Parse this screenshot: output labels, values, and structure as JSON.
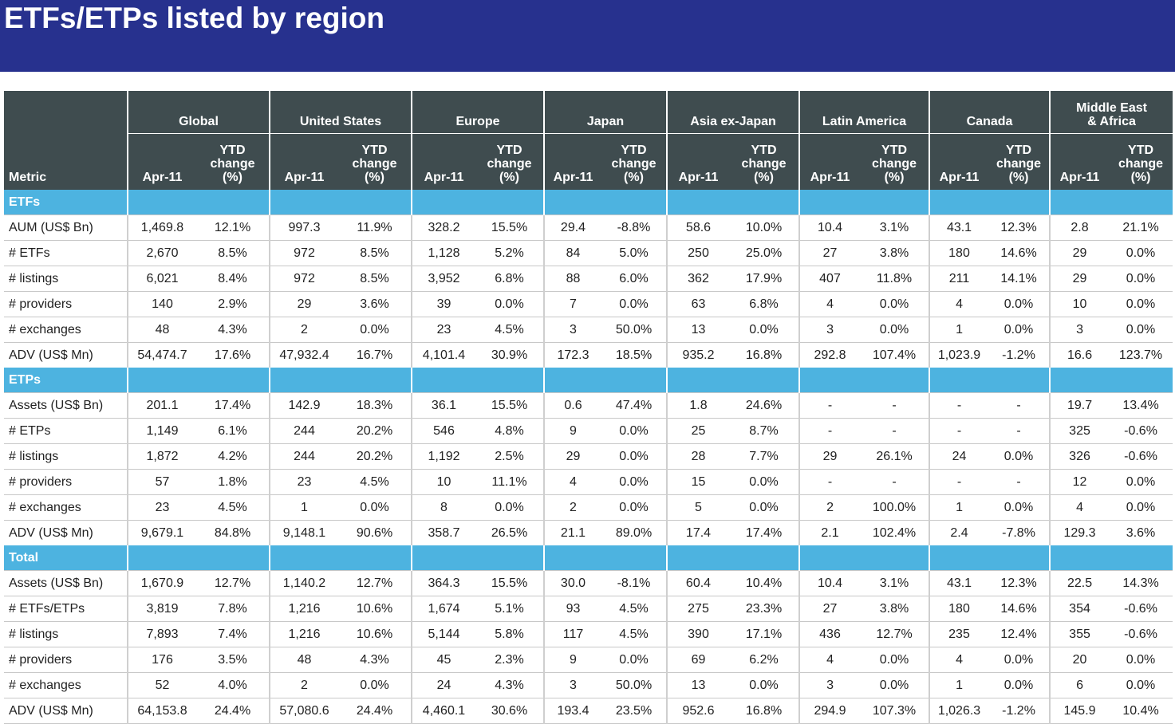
{
  "title": "ETFs/ETPs listed by region",
  "header": {
    "metric_label": "Metric",
    "regions": [
      "Global",
      "United States",
      "Europe",
      "Japan",
      "Asia ex-Japan",
      "Latin America",
      "Canada",
      "Middle East\n& Africa"
    ],
    "col1_label": "Apr-11",
    "col2_label": "YTD\nchange\n(%)"
  },
  "sections": [
    {
      "name": "ETFs",
      "rows": [
        {
          "metric": "AUM (US$ Bn)",
          "values": [
            "1,469.8",
            "12.1%",
            "997.3",
            "11.9%",
            "328.2",
            "15.5%",
            "29.4",
            "-8.8%",
            "58.6",
            "10.0%",
            "10.4",
            "3.1%",
            "43.1",
            "12.3%",
            "2.8",
            "21.1%"
          ]
        },
        {
          "metric": "# ETFs",
          "values": [
            "2,670",
            "8.5%",
            "972",
            "8.5%",
            "1,128",
            "5.2%",
            "84",
            "5.0%",
            "250",
            "25.0%",
            "27",
            "3.8%",
            "180",
            "14.6%",
            "29",
            "0.0%"
          ]
        },
        {
          "metric": "# listings",
          "values": [
            "6,021",
            "8.4%",
            "972",
            "8.5%",
            "3,952",
            "6.8%",
            "88",
            "6.0%",
            "362",
            "17.9%",
            "407",
            "11.8%",
            "211",
            "14.1%",
            "29",
            "0.0%"
          ]
        },
        {
          "metric": "# providers",
          "values": [
            "140",
            "2.9%",
            "29",
            "3.6%",
            "39",
            "0.0%",
            "7",
            "0.0%",
            "63",
            "6.8%",
            "4",
            "0.0%",
            "4",
            "0.0%",
            "10",
            "0.0%"
          ]
        },
        {
          "metric": "# exchanges",
          "values": [
            "48",
            "4.3%",
            "2",
            "0.0%",
            "23",
            "4.5%",
            "3",
            "50.0%",
            "13",
            "0.0%",
            "3",
            "0.0%",
            "1",
            "0.0%",
            "3",
            "0.0%"
          ]
        },
        {
          "metric": "ADV (US$ Mn)",
          "values": [
            "54,474.7",
            "17.6%",
            "47,932.4",
            "16.7%",
            "4,101.4",
            "30.9%",
            "172.3",
            "18.5%",
            "935.2",
            "16.8%",
            "292.8",
            "107.4%",
            "1,023.9",
            "-1.2%",
            "16.6",
            "123.7%"
          ]
        }
      ]
    },
    {
      "name": "ETPs",
      "rows": [
        {
          "metric": "Assets (US$ Bn)",
          "values": [
            "201.1",
            "17.4%",
            "142.9",
            "18.3%",
            "36.1",
            "15.5%",
            "0.6",
            "47.4%",
            "1.8",
            "24.6%",
            "-",
            "-",
            "-",
            "-",
            "19.7",
            "13.4%"
          ]
        },
        {
          "metric": "# ETPs",
          "values": [
            "1,149",
            "6.1%",
            "244",
            "20.2%",
            "546",
            "4.8%",
            "9",
            "0.0%",
            "25",
            "8.7%",
            "-",
            "-",
            "-",
            "-",
            "325",
            "-0.6%"
          ]
        },
        {
          "metric": "# listings",
          "values": [
            "1,872",
            "4.2%",
            "244",
            "20.2%",
            "1,192",
            "2.5%",
            "29",
            "0.0%",
            "28",
            "7.7%",
            "29",
            "26.1%",
            "24",
            "0.0%",
            "326",
            "-0.6%"
          ]
        },
        {
          "metric": "# providers",
          "values": [
            "57",
            "1.8%",
            "23",
            "4.5%",
            "10",
            "11.1%",
            "4",
            "0.0%",
            "15",
            "0.0%",
            "-",
            "-",
            "-",
            "-",
            "12",
            "0.0%"
          ]
        },
        {
          "metric": "# exchanges",
          "values": [
            "23",
            "4.5%",
            "1",
            "0.0%",
            "8",
            "0.0%",
            "2",
            "0.0%",
            "5",
            "0.0%",
            "2",
            "100.0%",
            "1",
            "0.0%",
            "4",
            "0.0%"
          ]
        },
        {
          "metric": "ADV (US$ Mn)",
          "values": [
            "9,679.1",
            "84.8%",
            "9,148.1",
            "90.6%",
            "358.7",
            "26.5%",
            "21.1",
            "89.0%",
            "17.4",
            "17.4%",
            "2.1",
            "102.4%",
            "2.4",
            "-7.8%",
            "129.3",
            "3.6%"
          ]
        }
      ]
    },
    {
      "name": "Total",
      "rows": [
        {
          "metric": "Assets (US$ Bn)",
          "values": [
            "1,670.9",
            "12.7%",
            "1,140.2",
            "12.7%",
            "364.3",
            "15.5%",
            "30.0",
            "-8.1%",
            "60.4",
            "10.4%",
            "10.4",
            "3.1%",
            "43.1",
            "12.3%",
            "22.5",
            "14.3%"
          ]
        },
        {
          "metric": "# ETFs/ETPs",
          "values": [
            "3,819",
            "7.8%",
            "1,216",
            "10.6%",
            "1,674",
            "5.1%",
            "93",
            "4.5%",
            "275",
            "23.3%",
            "27",
            "3.8%",
            "180",
            "14.6%",
            "354",
            "-0.6%"
          ]
        },
        {
          "metric": "# listings",
          "values": [
            "7,893",
            "7.4%",
            "1,216",
            "10.6%",
            "5,144",
            "5.8%",
            "117",
            "4.5%",
            "390",
            "17.1%",
            "436",
            "12.7%",
            "235",
            "12.4%",
            "355",
            "-0.6%"
          ]
        },
        {
          "metric": "# providers",
          "values": [
            "176",
            "3.5%",
            "48",
            "4.3%",
            "45",
            "2.3%",
            "9",
            "0.0%",
            "69",
            "6.2%",
            "4",
            "0.0%",
            "4",
            "0.0%",
            "20",
            "0.0%"
          ]
        },
        {
          "metric": "# exchanges",
          "values": [
            "52",
            "4.0%",
            "2",
            "0.0%",
            "24",
            "4.3%",
            "3",
            "50.0%",
            "13",
            "0.0%",
            "3",
            "0.0%",
            "1",
            "0.0%",
            "6",
            "0.0%"
          ]
        },
        {
          "metric": "ADV (US$ Mn)",
          "values": [
            "64,153.8",
            "24.4%",
            "57,080.6",
            "24.4%",
            "4,460.1",
            "30.6%",
            "193.4",
            "23.5%",
            "952.6",
            "16.8%",
            "294.9",
            "107.3%",
            "1,026.3",
            "-1.2%",
            "145.9",
            "10.4%"
          ]
        }
      ]
    }
  ],
  "colors": {
    "banner": "#27318e",
    "header_bg": "#3f4c4f",
    "section_bg": "#4db3e0"
  }
}
